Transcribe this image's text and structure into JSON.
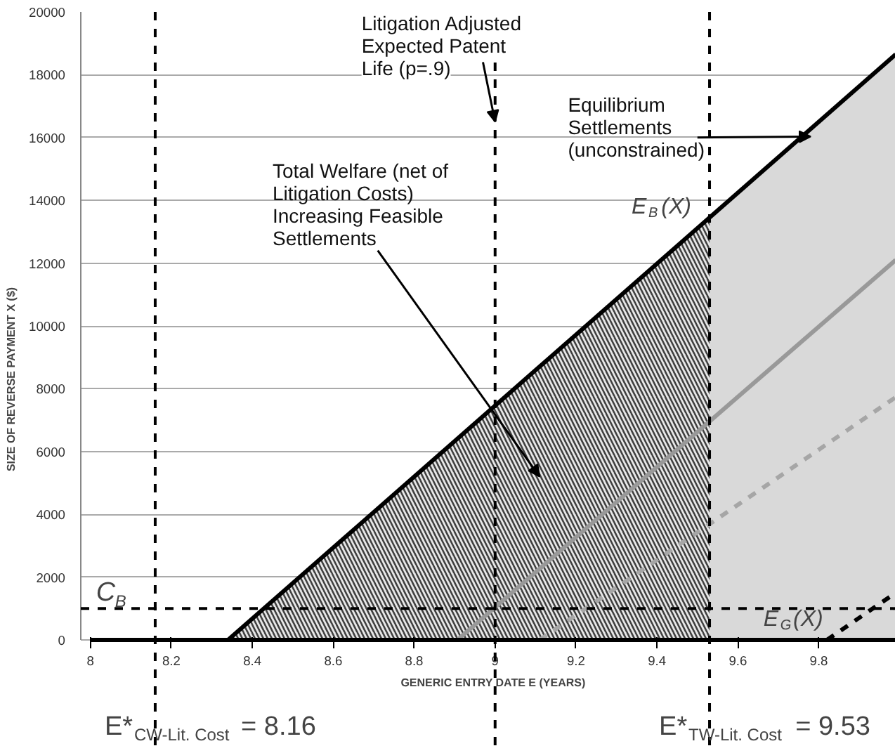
{
  "chart_data": {
    "type": "line",
    "xlabel": "GENERIC ENTRY DATE E (YEARS)",
    "ylabel": "SIZE OF REVERSE PAYMENT X ($)",
    "xlim": [
      8,
      9.99
    ],
    "xticks": [
      8,
      8.2,
      8.4,
      8.6,
      8.8,
      9,
      9.2,
      9.4,
      9.6,
      9.8
    ],
    "ylim": [
      0,
      20000
    ],
    "yticks": [
      0,
      2000,
      4000,
      6000,
      8000,
      10000,
      12000,
      14000,
      16000,
      18000,
      20000
    ],
    "grid": "y",
    "series": [
      {
        "type": "area",
        "color": "#d9d9d9",
        "x": [
          9.53,
          9.99
        ],
        "values": [
          13400,
          18650
        ]
      },
      {
        "type": "area",
        "color": "#404040",
        "x": [
          8.34,
          9.53
        ],
        "values": [
          0,
          13400
        ]
      },
      {
        "type": "line",
        "color": "#999999",
        "x": [
          8.907,
          9.99
        ],
        "values": [
          0,
          12100
        ],
        "line_style": "solid"
      },
      {
        "type": "line",
        "color": "#a6a6a6",
        "x": [
          9.11,
          9.99
        ],
        "values": [
          0,
          7730
        ],
        "line_style": "dashed"
      },
      {
        "type": "line",
        "name": "E$_{G}$(X)",
        "color": "#000000",
        "x": [
          9.82,
          9.99
        ],
        "values": [
          0,
          1500
        ],
        "line_style": "dashed"
      },
      {
        "type": "line",
        "name": "E$_{B}$(X)",
        "color": "#000000",
        "x": [
          8.34,
          9.99
        ],
        "values": [
          0,
          18650
        ],
        "line_style": "solid"
      }
    ],
    "ref_lines": [
      {
        "axis": "x",
        "value": 8.16,
        "label": "E*$_{CW-Lit. Cost}$ = 8.16",
        "line_style": "dashed",
        "color": "#000000"
      },
      {
        "axis": "x",
        "value": 9,
        "label": null,
        "line_style": "dashed",
        "color": "#000000"
      },
      {
        "axis": "x",
        "value": 9.53,
        "label": "E*$_{TW-Lit. Cost}$ = 9.53",
        "line_style": "dashed",
        "color": "#000000"
      },
      {
        "axis": "y",
        "value": 1000,
        "label": "C$_{B}$",
        "line_style": "dashed",
        "color": "#000000"
      }
    ],
    "annotations": [
      {
        "text": "Litigation Adjusted Expected Patent Life (p=.9)",
        "x": 9,
        "y": 16500
      },
      "Total Welfare (net of Litigation Costs) Increasing Feasible Settlements",
      {
        "text": "Equilibrium Settlements (unconstrained)",
        "x": 9.78,
        "y": 16030
      }
    ]
  }
}
